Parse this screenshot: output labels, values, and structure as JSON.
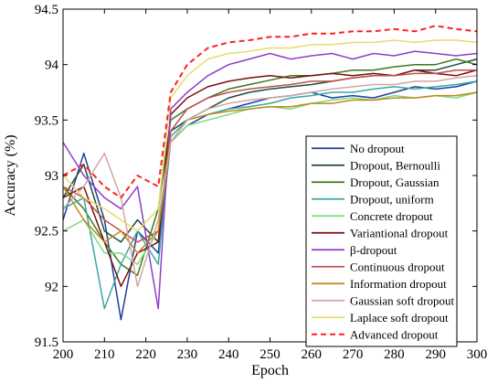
{
  "chart_data": {
    "type": "line",
    "xlabel": "Epoch",
    "ylabel": "Accuracy (%)",
    "xlim": [
      200,
      300
    ],
    "ylim": [
      91.5,
      94.5
    ],
    "xticks": [
      200,
      210,
      220,
      230,
      240,
      250,
      260,
      270,
      280,
      290,
      300
    ],
    "yticks": [
      91.5,
      92,
      92.5,
      93,
      93.5,
      94,
      94.5
    ],
    "ytick_labels": [
      "91.5",
      "92",
      "92.5",
      "93",
      "93.5",
      "94",
      "94.5"
    ],
    "grid": false,
    "legend_position": "bottom-right",
    "x": [
      200,
      205,
      210,
      214,
      218,
      223,
      226,
      230,
      235,
      240,
      245,
      250,
      255,
      260,
      265,
      270,
      275,
      280,
      285,
      290,
      295,
      300
    ],
    "series": [
      {
        "name": "No dropout",
        "color": "#1f3f9f",
        "dashed": false,
        "values": [
          92.6,
          93.2,
          92.6,
          91.7,
          92.5,
          92.3,
          93.3,
          93.45,
          93.55,
          93.6,
          93.65,
          93.7,
          93.72,
          93.75,
          93.7,
          93.72,
          93.7,
          93.75,
          93.8,
          93.78,
          93.8,
          93.85
        ]
      },
      {
        "name": "Dropout, Bernoulli",
        "color": "#1d4d3a",
        "dashed": false,
        "values": [
          92.8,
          93.1,
          92.5,
          92.4,
          92.6,
          92.4,
          93.4,
          93.5,
          93.6,
          93.7,
          93.75,
          93.78,
          93.8,
          93.82,
          93.85,
          93.88,
          93.9,
          93.9,
          93.95,
          93.95,
          94.0,
          94.05
        ]
      },
      {
        "name": "Dropout, Gaussian",
        "color": "#3a7a1e",
        "dashed": false,
        "values": [
          92.9,
          92.7,
          92.4,
          92.2,
          92.1,
          92.7,
          93.5,
          93.6,
          93.7,
          93.78,
          93.82,
          93.86,
          93.9,
          93.9,
          93.92,
          93.95,
          93.95,
          93.98,
          94.0,
          94.0,
          94.05,
          94.0
        ]
      },
      {
        "name": "Dropout, uniform",
        "color": "#3aa6a6",
        "dashed": false,
        "values": [
          92.7,
          92.8,
          91.8,
          92.2,
          92.5,
          92.2,
          93.35,
          93.5,
          93.55,
          93.6,
          93.62,
          93.65,
          93.7,
          93.72,
          93.75,
          93.75,
          93.78,
          93.8,
          93.78,
          93.8,
          93.82,
          93.85
        ]
      },
      {
        "name": "Concrete dropout",
        "color": "#7fd97f",
        "dashed": false,
        "values": [
          92.5,
          92.6,
          92.3,
          92.3,
          92.2,
          92.5,
          93.3,
          93.45,
          93.5,
          93.55,
          93.6,
          93.62,
          93.6,
          93.65,
          93.68,
          93.7,
          93.68,
          93.72,
          93.7,
          93.72,
          93.7,
          93.75
        ]
      },
      {
        "name": "Variantional dropout",
        "color": "#7a0f0f",
        "dashed": false,
        "values": [
          92.8,
          92.9,
          92.4,
          92.0,
          92.3,
          92.4,
          93.55,
          93.7,
          93.8,
          93.85,
          93.88,
          93.9,
          93.88,
          93.9,
          93.92,
          93.9,
          93.92,
          93.9,
          93.95,
          93.92,
          93.9,
          93.95
        ]
      },
      {
        "name": "β-dropout",
        "color": "#8e3ec8",
        "dashed": false,
        "values": [
          93.3,
          93.0,
          92.8,
          92.7,
          92.9,
          91.8,
          93.6,
          93.75,
          93.9,
          94.0,
          94.05,
          94.1,
          94.05,
          94.08,
          94.1,
          94.05,
          94.1,
          94.08,
          94.12,
          94.1,
          94.08,
          94.1
        ]
      },
      {
        "name": "Continuous dropout",
        "color": "#c0504d",
        "dashed": false,
        "values": [
          92.9,
          92.8,
          92.6,
          92.5,
          92.4,
          92.5,
          93.4,
          93.6,
          93.7,
          93.75,
          93.78,
          93.8,
          93.82,
          93.85,
          93.85,
          93.88,
          93.9,
          93.9,
          93.92,
          93.92,
          93.95,
          93.95
        ]
      },
      {
        "name": "Information dropout",
        "color": "#c08a1a",
        "dashed": false,
        "values": [
          92.9,
          92.6,
          92.4,
          92.5,
          92.3,
          92.5,
          93.3,
          93.5,
          93.55,
          93.58,
          93.6,
          93.62,
          93.62,
          93.65,
          93.65,
          93.68,
          93.68,
          93.7,
          93.7,
          93.72,
          93.72,
          93.75
        ]
      },
      {
        "name": "Gaussian soft dropout",
        "color": "#d4a5a5",
        "dashed": false,
        "values": [
          92.7,
          92.9,
          93.2,
          92.8,
          92.0,
          92.6,
          93.3,
          93.5,
          93.6,
          93.65,
          93.68,
          93.7,
          93.72,
          93.75,
          93.78,
          93.8,
          93.82,
          93.82,
          93.85,
          93.85,
          93.88,
          93.9
        ]
      },
      {
        "name": "Laplace soft dropout",
        "color": "#e6dc6a",
        "dashed": false,
        "values": [
          93.0,
          92.8,
          92.7,
          92.6,
          92.5,
          92.7,
          93.7,
          93.9,
          94.05,
          94.1,
          94.12,
          94.15,
          94.15,
          94.18,
          94.18,
          94.2,
          94.2,
          94.22,
          94.2,
          94.22,
          94.22,
          94.2
        ]
      },
      {
        "name": "Advanced dropout",
        "color": "#ff2020",
        "dashed": true,
        "values": [
          93.0,
          93.1,
          92.9,
          92.8,
          93.0,
          92.9,
          93.75,
          94.0,
          94.15,
          94.2,
          94.22,
          94.25,
          94.25,
          94.28,
          94.28,
          94.3,
          94.3,
          94.32,
          94.3,
          94.35,
          94.32,
          94.3
        ]
      }
    ]
  }
}
